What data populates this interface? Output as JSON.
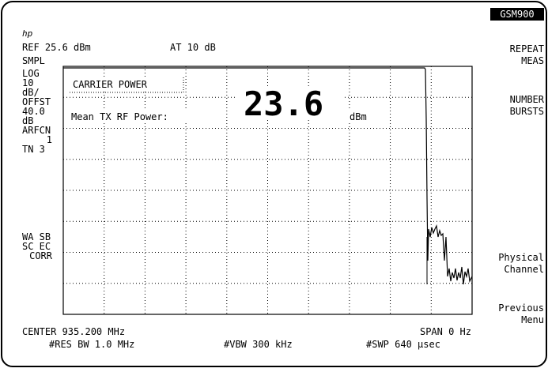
{
  "header": {
    "logo": "hp",
    "ref_level": "REF 25.6 dBm",
    "attenuation": "AT 10 dB",
    "mode_badge": "GSM900"
  },
  "left_annotations": [
    "SMPL",
    "LOG",
    "10",
    "dB/",
    "OFFST",
    "40.0",
    "dB",
    "ARFCN",
    "1",
    "TN 3",
    "WA SB",
    "SC EC",
    "CORR"
  ],
  "measurement": {
    "title": "CARRIER POWER",
    "label": "Mean TX RF Power:",
    "value": "23.6",
    "unit": "dBm"
  },
  "footer": {
    "center": "CENTER 935.200 MHz",
    "span": "SPAN 0 Hz",
    "res_bw": "#RES BW 1.0 MHz",
    "vbw": "#VBW 300 kHz",
    "sweep": "#SWP 640 µsec"
  },
  "softkeys": [
    [
      "REPEAT",
      "MEAS"
    ],
    [
      "NUMBER",
      "BURSTS"
    ],
    [
      "Physical",
      "Channel"
    ],
    [
      "Previous",
      "Menu"
    ]
  ]
}
